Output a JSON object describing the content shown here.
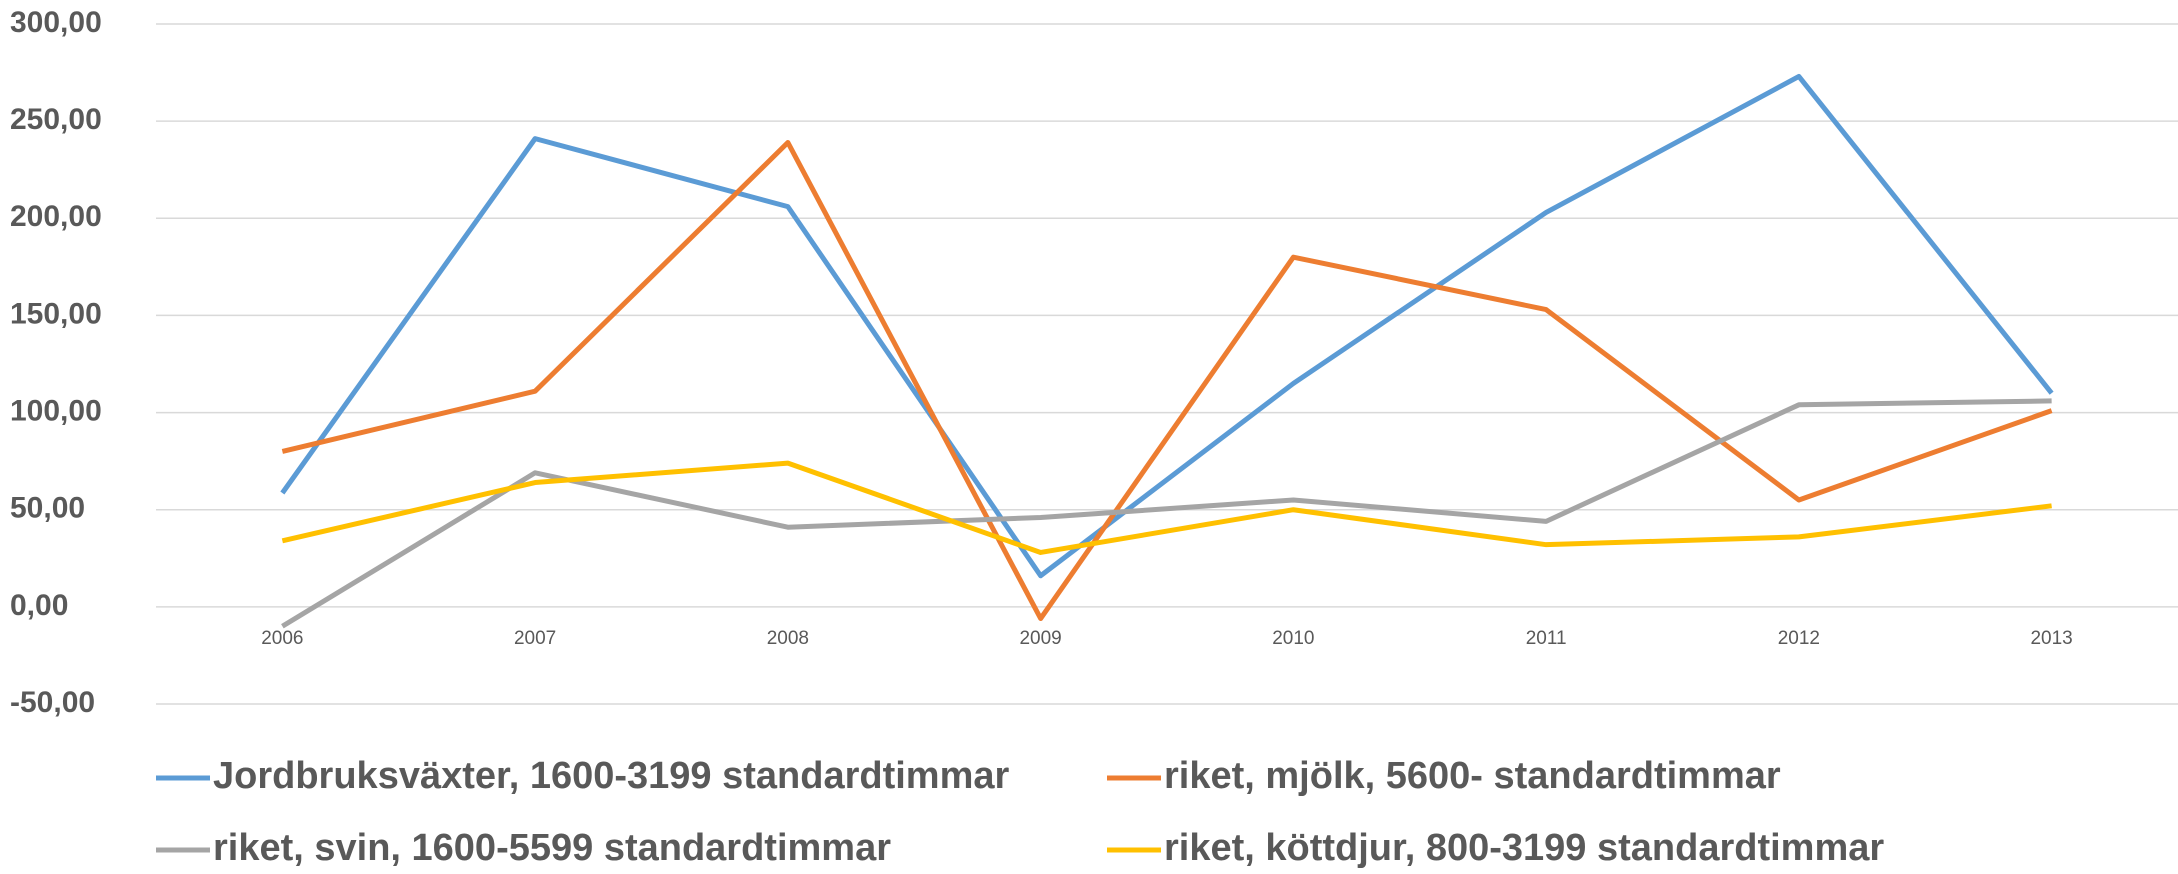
{
  "chart_data": {
    "type": "line",
    "categories": [
      "2006",
      "2007",
      "2008",
      "2009",
      "2010",
      "2011",
      "2012",
      "2013"
    ],
    "series": [
      {
        "name": "Jordbruksväxter, 1600-3199 standardtimmar",
        "color": "#5b9bd5",
        "values": [
          58.6,
          241,
          206,
          16,
          115,
          203,
          273,
          110
        ]
      },
      {
        "name": "riket, mjölk, 5600- standardtimmar",
        "color": "#ed7d31",
        "values": [
          80,
          111,
          239,
          -6,
          180,
          153,
          55,
          101
        ]
      },
      {
        "name": "riket, svin, 1600-5599 standardtimmar",
        "color": "#a5a5a5",
        "values": [
          -10,
          69,
          41,
          46,
          55,
          44,
          104,
          106
        ]
      },
      {
        "name": "riket, köttdjur, 800-3199 standardtimmar",
        "color": "#ffc000",
        "values": [
          34,
          64,
          74,
          28,
          50,
          32,
          36,
          52
        ]
      }
    ],
    "ylim": [
      -50,
      300
    ],
    "yticks": [
      {
        "value": -50,
        "label": "-50,00"
      },
      {
        "value": 0,
        "label": "0,00"
      },
      {
        "value": 50,
        "label": "50,00"
      },
      {
        "value": 100,
        "label": "100,00"
      },
      {
        "value": 150,
        "label": "150,00"
      },
      {
        "value": 200,
        "label": "200,00"
      },
      {
        "value": 250,
        "label": "250,00"
      },
      {
        "value": 300,
        "label": "300,00"
      }
    ],
    "grid": true
  }
}
